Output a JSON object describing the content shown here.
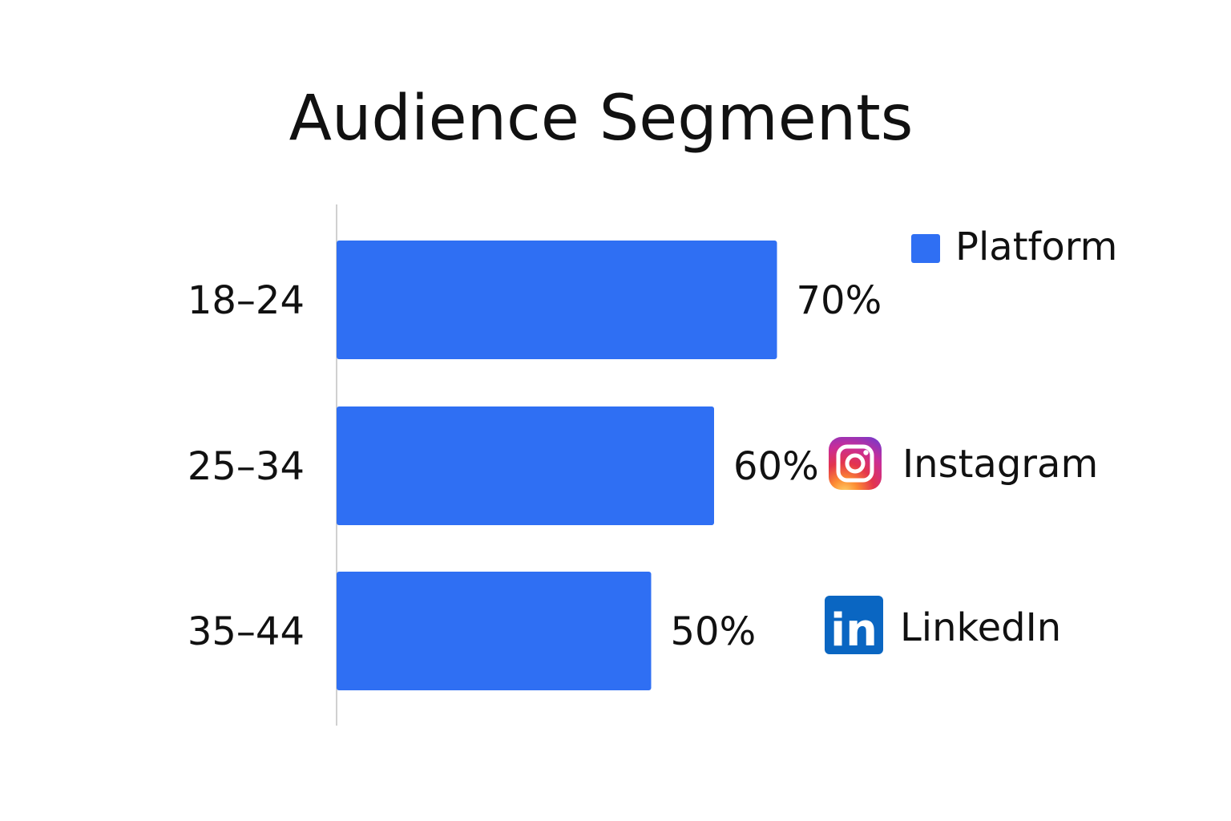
{
  "chart_data": {
    "type": "bar",
    "orientation": "horizontal",
    "title": "Audience Segments",
    "categories": [
      "18–24",
      "25–34",
      "35–44"
    ],
    "series": [
      {
        "name": "Platform",
        "values": [
          70,
          60,
          50
        ]
      }
    ],
    "value_labels": [
      "70%",
      "60%",
      "50%"
    ],
    "xlim": [
      0,
      100
    ],
    "grid": false,
    "legend": {
      "position": "right",
      "entries": [
        {
          "label": "Platform",
          "icon": "square-swatch-icon"
        },
        {
          "label": "Instagram",
          "icon": "instagram-icon"
        },
        {
          "label": "LinkedIn",
          "icon": "linkedin-icon",
          "icon_text": "in"
        }
      ]
    },
    "colors": {
      "bar": "#2f6ff3",
      "axis": "#d0d0d0",
      "text": "#111111",
      "linkedin": "#0a66c2"
    }
  }
}
